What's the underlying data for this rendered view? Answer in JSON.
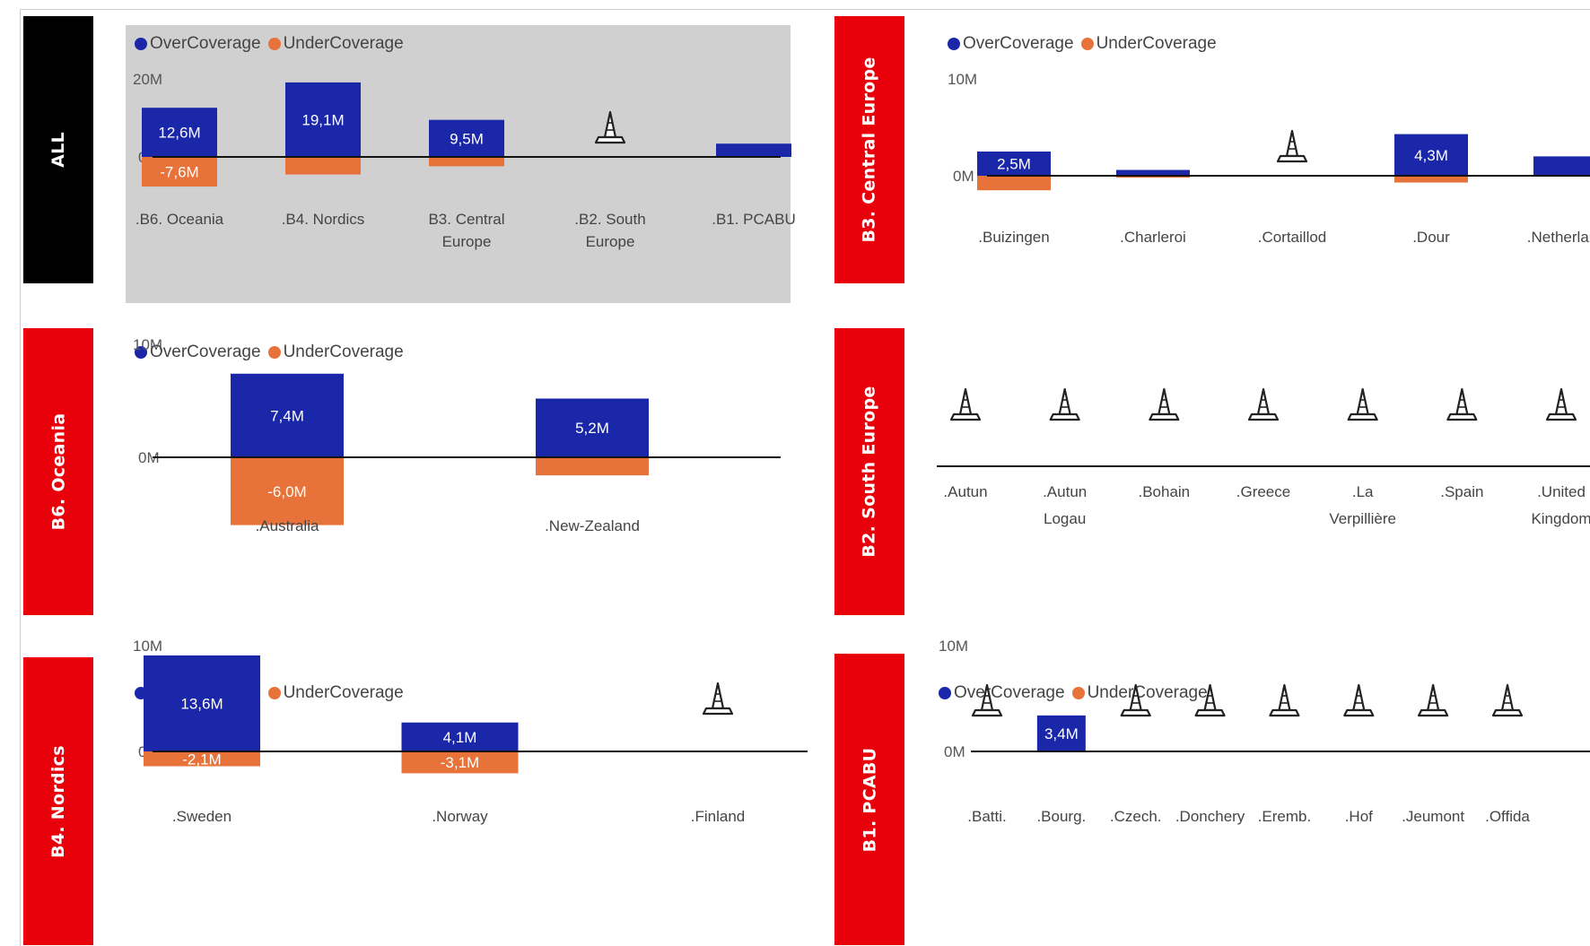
{
  "legend": {
    "over": "OverCoverage",
    "under": "UnderCoverage"
  },
  "colors": {
    "over": "#1a27a8",
    "under": "#e8733a",
    "label_bg_all": "#000000",
    "label_bg": "#e8000b",
    "gray_panel": "#d0d0d0"
  },
  "panels": [
    {
      "label": "ALL"
    },
    {
      "label": "B3. Central Europe"
    },
    {
      "label": "B6. Oceania"
    },
    {
      "label": "B2. South Europe"
    },
    {
      "label": "B4. Nordics"
    },
    {
      "label": "B1. PCABU"
    }
  ],
  "chart_data": [
    {
      "type": "bar",
      "title": "ALL",
      "ytick_top": "20M",
      "ytick_zero": "0M",
      "categories": [
        ".B6. Oceania",
        ".B4. Nordics",
        "B3. Central Europe",
        ".B2. South Europe",
        ".B1. PCABU"
      ],
      "series": [
        {
          "name": "OverCoverage",
          "values": [
            12.6,
            19.1,
            9.5,
            null,
            3.4
          ],
          "labels": [
            "12,6M",
            "19,1M",
            "9,5M",
            "",
            ""
          ]
        },
        {
          "name": "UnderCoverage",
          "values": [
            -7.6,
            -4.5,
            -2.4,
            null,
            0
          ],
          "labels": [
            "-7,6M",
            "",
            "",
            "",
            ""
          ]
        }
      ],
      "no_data_cones": [
        false,
        false,
        false,
        true,
        false
      ],
      "ylim": [
        -10,
        20
      ]
    },
    {
      "type": "bar",
      "title": "B3. Central Europe",
      "ytick_top": "10M",
      "ytick_zero": "0M",
      "categories": [
        ".Buizingen",
        ".Charleroi",
        ".Cortaillod",
        ".Dour",
        ".Netherlands"
      ],
      "series": [
        {
          "name": "OverCoverage",
          "values": [
            2.5,
            0.6,
            null,
            4.3,
            2.0
          ],
          "labels": [
            "2,5M",
            "",
            "",
            "4,3M",
            ""
          ]
        },
        {
          "name": "UnderCoverage",
          "values": [
            -1.5,
            -0.2,
            null,
            -0.7,
            0
          ],
          "labels": [
            "",
            "",
            "",
            "",
            ""
          ]
        }
      ],
      "no_data_cones": [
        false,
        false,
        true,
        false,
        false
      ],
      "ylim": [
        -3,
        10
      ]
    },
    {
      "type": "bar",
      "title": "B6. Oceania",
      "ytick_top": "10M",
      "ytick_zero": "0M",
      "categories": [
        ".Australia",
        ".New-Zealand"
      ],
      "series": [
        {
          "name": "OverCoverage",
          "values": [
            7.4,
            5.2
          ],
          "labels": [
            "7,4M",
            "5,2M"
          ]
        },
        {
          "name": "UnderCoverage",
          "values": [
            -6.0,
            -1.6
          ],
          "labels": [
            "-6,0M",
            ""
          ]
        }
      ],
      "no_data_cones": [
        false,
        false
      ],
      "ylim": [
        -8,
        10
      ]
    },
    {
      "type": "bar",
      "title": "B2. South Europe",
      "categories": [
        ".Autun",
        ".Autun Logau",
        ".Bohain",
        ".Greece",
        ".La Verpillière",
        ".Spain",
        ".United Kingdom"
      ],
      "series": [],
      "no_data_cones": [
        true,
        true,
        true,
        true,
        true,
        true,
        true
      ]
    },
    {
      "type": "bar",
      "title": "B4. Nordics",
      "ytick_top": "10M",
      "ytick_zero": "0M",
      "categories": [
        ".Sweden",
        ".Norway",
        ".Finland"
      ],
      "series": [
        {
          "name": "OverCoverage",
          "values": [
            13.6,
            4.1,
            null
          ],
          "labels": [
            "13,6M",
            "4,1M",
            ""
          ]
        },
        {
          "name": "UnderCoverage",
          "values": [
            -2.1,
            -3.1,
            null
          ],
          "labels": [
            "-2,1M",
            "-3,1M",
            ""
          ]
        }
      ],
      "no_data_cones": [
        false,
        false,
        true
      ],
      "ylim": [
        -5,
        15
      ]
    },
    {
      "type": "bar",
      "title": "B1. PCABU",
      "ytick_top": "10M",
      "ytick_zero": "0M",
      "categories": [
        ".Batti.",
        ".Bourg.",
        ".Czech.",
        ".Donchery",
        ".Eremb.",
        ".Hof",
        ".Jeumont",
        ".Offida"
      ],
      "series": [
        {
          "name": "OverCoverage",
          "values": [
            null,
            3.4,
            null,
            null,
            null,
            null,
            null,
            null
          ],
          "labels": [
            "",
            "3,4M",
            "",
            "",
            "",
            "",
            "",
            ""
          ]
        },
        {
          "name": "UnderCoverage",
          "values": [
            null,
            0,
            null,
            null,
            null,
            null,
            null,
            null
          ],
          "labels": [
            "",
            "",
            "",
            "",
            "",
            "",
            "",
            ""
          ]
        }
      ],
      "no_data_cones": [
        true,
        false,
        true,
        true,
        true,
        true,
        true,
        true
      ],
      "ylim": [
        -2,
        10
      ]
    }
  ]
}
